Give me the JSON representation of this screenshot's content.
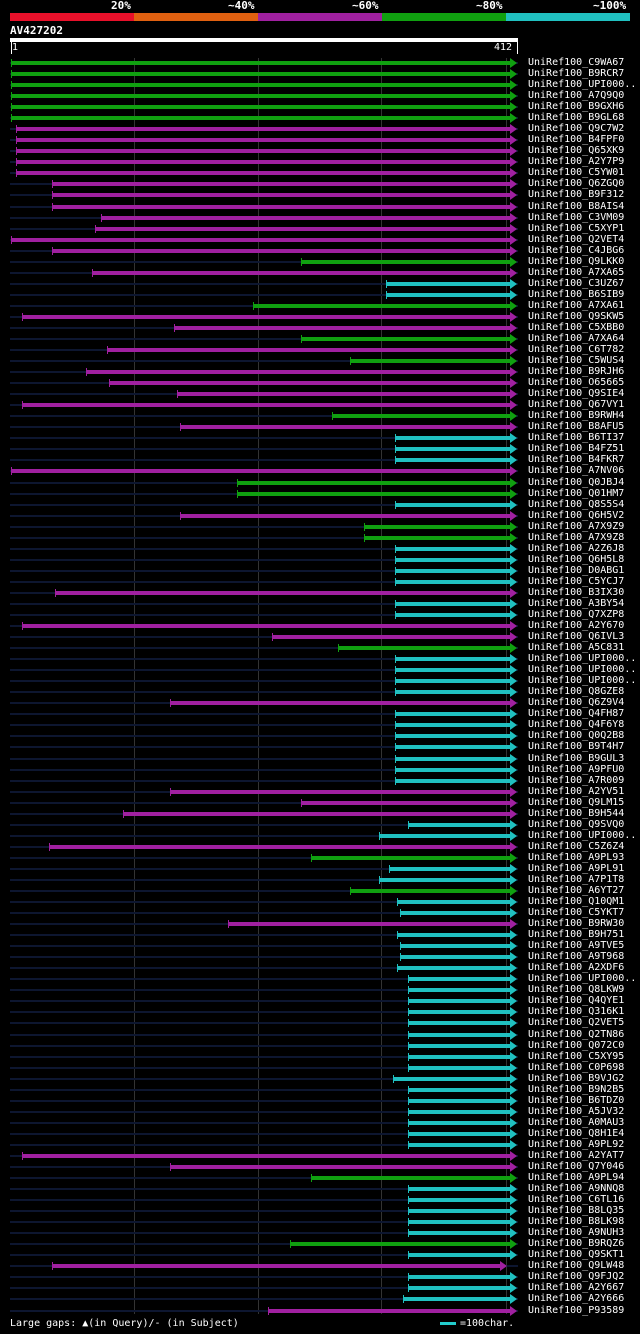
{
  "legend": {
    "labels": [
      "20%",
      "~40%",
      "~60%",
      "~80%",
      "~100%"
    ],
    "colors": [
      "#e8102a",
      "#e06010",
      "#a020a0",
      "#10a010",
      "#20c0c0"
    ]
  },
  "query": {
    "id": "AV427202",
    "start": "1",
    "end": "412",
    "length": 412
  },
  "hits": [
    {
      "label": "UniRef100_C9WA67",
      "start": 1,
      "end": 412,
      "color": "green"
    },
    {
      "label": "UniRef100_B9RCR7",
      "start": 1,
      "end": 412,
      "color": "green"
    },
    {
      "label": "UniRef100_UPI000..",
      "start": 1,
      "end": 412,
      "color": "green"
    },
    {
      "label": "UniRef100_A7Q9Q0",
      "start": 1,
      "end": 412,
      "color": "green"
    },
    {
      "label": "UniRef100_B9GXH6",
      "start": 1,
      "end": 412,
      "color": "green"
    },
    {
      "label": "UniRef100_B9GL68",
      "start": 1,
      "end": 412,
      "color": "green"
    },
    {
      "label": "UniRef100_Q9C7W2",
      "start": 5,
      "end": 412,
      "color": "purple"
    },
    {
      "label": "UniRef100_B4FPF0",
      "start": 5,
      "end": 412,
      "color": "purple"
    },
    {
      "label": "UniRef100_Q65XK9",
      "start": 5,
      "end": 412,
      "color": "purple"
    },
    {
      "label": "UniRef100_A2Y7P9",
      "start": 5,
      "end": 412,
      "color": "purple"
    },
    {
      "label": "UniRef100_C5YW01",
      "start": 5,
      "end": 412,
      "color": "purple"
    },
    {
      "label": "UniRef100_Q6ZGQ0",
      "start": 35,
      "end": 412,
      "color": "purple"
    },
    {
      "label": "UniRef100_B9F312",
      "start": 35,
      "end": 412,
      "color": "purple"
    },
    {
      "label": "UniRef100_B8AIS4",
      "start": 35,
      "end": 412,
      "color": "purple"
    },
    {
      "label": "UniRef100_C3VM09",
      "start": 75,
      "end": 412,
      "color": "purple"
    },
    {
      "label": "UniRef100_C5XYP1",
      "start": 70,
      "end": 412,
      "color": "purple"
    },
    {
      "label": "UniRef100_Q2VET4",
      "start": 1,
      "end": 412,
      "color": "purple"
    },
    {
      "label": "UniRef100_C4JBG6",
      "start": 35,
      "end": 412,
      "color": "purple"
    },
    {
      "label": "UniRef100_Q9LKK0",
      "start": 240,
      "end": 412,
      "color": "green"
    },
    {
      "label": "UniRef100_A7XA65",
      "start": 68,
      "end": 412,
      "color": "purple"
    },
    {
      "label": "UniRef100_C3UZ67",
      "start": 310,
      "end": 412,
      "color": "cyan"
    },
    {
      "label": "UniRef100_B6SIB9",
      "start": 310,
      "end": 412,
      "color": "cyan"
    },
    {
      "label": "UniRef100_A7XA61",
      "start": 200,
      "end": 412,
      "color": "green"
    },
    {
      "label": "UniRef100_Q9SKW5",
      "start": 10,
      "end": 412,
      "color": "purple"
    },
    {
      "label": "UniRef100_C5XBB0",
      "start": 135,
      "end": 412,
      "color": "purple"
    },
    {
      "label": "UniRef100_A7XA64",
      "start": 240,
      "end": 412,
      "color": "green"
    },
    {
      "label": "UniRef100_C6T782",
      "start": 80,
      "end": 412,
      "color": "purple"
    },
    {
      "label": "UniRef100_C5WUS4",
      "start": 280,
      "end": 412,
      "color": "green"
    },
    {
      "label": "UniRef100_B9RJH6",
      "start": 63,
      "end": 412,
      "color": "purple"
    },
    {
      "label": "UniRef100_O65665",
      "start": 82,
      "end": 412,
      "color": "purple"
    },
    {
      "label": "UniRef100_Q9SIE4",
      "start": 138,
      "end": 412,
      "color": "purple"
    },
    {
      "label": "UniRef100_Q67VY1",
      "start": 10,
      "end": 412,
      "color": "purple"
    },
    {
      "label": "UniRef100_B9RWH4",
      "start": 265,
      "end": 412,
      "color": "green"
    },
    {
      "label": "UniRef100_B8AFU5",
      "start": 140,
      "end": 412,
      "color": "purple"
    },
    {
      "label": "UniRef100_B6TI37",
      "start": 317,
      "end": 412,
      "color": "cyan"
    },
    {
      "label": "UniRef100_B4FZ51",
      "start": 317,
      "end": 412,
      "color": "cyan"
    },
    {
      "label": "UniRef100_B4FKR7",
      "start": 317,
      "end": 412,
      "color": "cyan"
    },
    {
      "label": "UniRef100_A7NV06",
      "start": 1,
      "end": 412,
      "color": "purple"
    },
    {
      "label": "UniRef100_Q0JBJ4",
      "start": 187,
      "end": 412,
      "color": "green"
    },
    {
      "label": "UniRef100_Q01HM7",
      "start": 187,
      "end": 412,
      "color": "green"
    },
    {
      "label": "UniRef100_Q8S5S4",
      "start": 317,
      "end": 412,
      "color": "cyan"
    },
    {
      "label": "UniRef100_Q6H5V2",
      "start": 140,
      "end": 412,
      "color": "purple"
    },
    {
      "label": "UniRef100_A7X9Z9",
      "start": 292,
      "end": 412,
      "color": "green"
    },
    {
      "label": "UniRef100_A7X9Z8",
      "start": 292,
      "end": 412,
      "color": "green"
    },
    {
      "label": "UniRef100_A2Z6J8",
      "start": 317,
      "end": 412,
      "color": "cyan"
    },
    {
      "label": "UniRef100_Q6H5L8",
      "start": 317,
      "end": 412,
      "color": "cyan"
    },
    {
      "label": "UniRef100_D0ABG1",
      "start": 317,
      "end": 412,
      "color": "cyan"
    },
    {
      "label": "UniRef100_C5YCJ7",
      "start": 317,
      "end": 412,
      "color": "cyan"
    },
    {
      "label": "UniRef100_B3IX30",
      "start": 37,
      "end": 412,
      "color": "purple"
    },
    {
      "label": "UniRef100_A3BY54",
      "start": 317,
      "end": 412,
      "color": "cyan"
    },
    {
      "label": "UniRef100_Q7XZP8",
      "start": 317,
      "end": 412,
      "color": "cyan"
    },
    {
      "label": "UniRef100_A2Y670",
      "start": 10,
      "end": 412,
      "color": "purple"
    },
    {
      "label": "UniRef100_Q6IVL3",
      "start": 216,
      "end": 412,
      "color": "purple"
    },
    {
      "label": "UniRef100_A5C831",
      "start": 270,
      "end": 412,
      "color": "green"
    },
    {
      "label": "UniRef100_UPI000..",
      "start": 317,
      "end": 412,
      "color": "cyan"
    },
    {
      "label": "UniRef100_UPI000..",
      "start": 317,
      "end": 412,
      "color": "cyan"
    },
    {
      "label": "UniRef100_UPI000..",
      "start": 317,
      "end": 412,
      "color": "cyan"
    },
    {
      "label": "UniRef100_Q8GZE8",
      "start": 317,
      "end": 412,
      "color": "cyan"
    },
    {
      "label": "UniRef100_Q6Z9V4",
      "start": 132,
      "end": 412,
      "color": "purple"
    },
    {
      "label": "UniRef100_Q4FH87",
      "start": 317,
      "end": 412,
      "color": "cyan"
    },
    {
      "label": "UniRef100_Q4F6Y8",
      "start": 317,
      "end": 412,
      "color": "cyan"
    },
    {
      "label": "UniRef100_Q0Q2B8",
      "start": 317,
      "end": 412,
      "color": "cyan"
    },
    {
      "label": "UniRef100_B9T4H7",
      "start": 317,
      "end": 412,
      "color": "cyan"
    },
    {
      "label": "UniRef100_B9GUL3",
      "start": 317,
      "end": 412,
      "color": "cyan"
    },
    {
      "label": "UniRef100_A9PFU0",
      "start": 317,
      "end": 412,
      "color": "cyan"
    },
    {
      "label": "UniRef100_A7R009",
      "start": 317,
      "end": 412,
      "color": "cyan"
    },
    {
      "label": "UniRef100_A2YV51",
      "start": 132,
      "end": 412,
      "color": "purple"
    },
    {
      "label": "UniRef100_Q9LM15",
      "start": 240,
      "end": 412,
      "color": "purple"
    },
    {
      "label": "UniRef100_B9H544",
      "start": 93,
      "end": 412,
      "color": "purple"
    },
    {
      "label": "UniRef100_Q9SVQ0",
      "start": 328,
      "end": 412,
      "color": "cyan"
    },
    {
      "label": "UniRef100_UPI000..",
      "start": 304,
      "end": 412,
      "color": "cyan"
    },
    {
      "label": "UniRef100_C5Z6Z4",
      "start": 32,
      "end": 412,
      "color": "purple"
    },
    {
      "label": "UniRef100_A9PL93",
      "start": 248,
      "end": 412,
      "color": "green"
    },
    {
      "label": "UniRef100_A9PL91",
      "start": 312,
      "end": 412,
      "color": "cyan"
    },
    {
      "label": "UniRef100_A7P1T8",
      "start": 304,
      "end": 412,
      "color": "cyan"
    },
    {
      "label": "UniRef100_A6YT27",
      "start": 280,
      "end": 412,
      "color": "green"
    },
    {
      "label": "UniRef100_Q10QM1",
      "start": 319,
      "end": 412,
      "color": "cyan"
    },
    {
      "label": "UniRef100_C5YKT7",
      "start": 321,
      "end": 412,
      "color": "cyan"
    },
    {
      "label": "UniRef100_B9RW30",
      "start": 180,
      "end": 412,
      "color": "purple"
    },
    {
      "label": "UniRef100_B9H751",
      "start": 319,
      "end": 412,
      "color": "cyan"
    },
    {
      "label": "UniRef100_A9TVE5",
      "start": 321,
      "end": 412,
      "color": "cyan"
    },
    {
      "label": "UniRef100_A9T968",
      "start": 321,
      "end": 412,
      "color": "cyan"
    },
    {
      "label": "UniRef100_A2XDF6",
      "start": 319,
      "end": 412,
      "color": "cyan"
    },
    {
      "label": "UniRef100_UPI000..",
      "start": 328,
      "end": 412,
      "color": "cyan"
    },
    {
      "label": "UniRef100_Q8LKW9",
      "start": 328,
      "end": 412,
      "color": "cyan"
    },
    {
      "label": "UniRef100_Q4QYE1",
      "start": 328,
      "end": 412,
      "color": "cyan"
    },
    {
      "label": "UniRef100_Q316K1",
      "start": 328,
      "end": 412,
      "color": "cyan"
    },
    {
      "label": "UniRef100_Q2VET5",
      "start": 328,
      "end": 412,
      "color": "cyan"
    },
    {
      "label": "UniRef100_Q2TN86",
      "start": 328,
      "end": 412,
      "color": "cyan"
    },
    {
      "label": "UniRef100_Q072C0",
      "start": 328,
      "end": 412,
      "color": "cyan"
    },
    {
      "label": "UniRef100_C5XY95",
      "start": 328,
      "end": 412,
      "color": "cyan"
    },
    {
      "label": "UniRef100_C0P698",
      "start": 328,
      "end": 412,
      "color": "cyan"
    },
    {
      "label": "UniRef100_B9VJG2",
      "start": 316,
      "end": 412,
      "color": "cyan"
    },
    {
      "label": "UniRef100_B9N2B5",
      "start": 328,
      "end": 412,
      "color": "cyan"
    },
    {
      "label": "UniRef100_B6TDZ0",
      "start": 328,
      "end": 412,
      "color": "cyan"
    },
    {
      "label": "UniRef100_A5JV32",
      "start": 328,
      "end": 412,
      "color": "cyan"
    },
    {
      "label": "UniRef100_A0MAU3",
      "start": 328,
      "end": 412,
      "color": "cyan"
    },
    {
      "label": "UniRef100_Q8H1E4",
      "start": 328,
      "end": 412,
      "color": "cyan"
    },
    {
      "label": "UniRef100_A9PL92",
      "start": 328,
      "end": 412,
      "color": "cyan"
    },
    {
      "label": "UniRef100_A2YAT7",
      "start": 10,
      "end": 412,
      "color": "purple"
    },
    {
      "label": "UniRef100_Q7Y046",
      "start": 132,
      "end": 412,
      "color": "purple"
    },
    {
      "label": "UniRef100_A9PL94",
      "start": 248,
      "end": 412,
      "color": "green"
    },
    {
      "label": "UniRef100_A9NNQ8",
      "start": 328,
      "end": 412,
      "color": "cyan"
    },
    {
      "label": "UniRef100_C6TL16",
      "start": 328,
      "end": 412,
      "color": "cyan"
    },
    {
      "label": "UniRef100_B8LQ35",
      "start": 328,
      "end": 412,
      "color": "cyan"
    },
    {
      "label": "UniRef100_B8LK98",
      "start": 328,
      "end": 412,
      "color": "cyan"
    },
    {
      "label": "UniRef100_A9NUH3",
      "start": 328,
      "end": 412,
      "color": "cyan"
    },
    {
      "label": "UniRef100_B9RQZ6",
      "start": 231,
      "end": 412,
      "color": "green"
    },
    {
      "label": "UniRef100_Q9SKT1",
      "start": 328,
      "end": 412,
      "color": "cyan"
    },
    {
      "label": "UniRef100_Q9LW48",
      "start": 35,
      "end": 404,
      "color": "purple"
    },
    {
      "label": "UniRef100_Q9FJQ2",
      "start": 328,
      "end": 412,
      "color": "cyan"
    },
    {
      "label": "UniRef100_A2Y667",
      "start": 328,
      "end": 412,
      "color": "cyan"
    },
    {
      "label": "UniRef100_A2Y666",
      "start": 324,
      "end": 412,
      "color": "cyan"
    },
    {
      "label": "UniRef100_P93589",
      "start": 213,
      "end": 412,
      "color": "purple"
    }
  ],
  "colors": {
    "green": "#10a010",
    "purple": "#a020a0",
    "cyan": "#20c0c0"
  },
  "footer": {
    "gaps_text": "Large gaps: ▲(in Query)/- (in Subject)",
    "scale_text": "=100char."
  }
}
